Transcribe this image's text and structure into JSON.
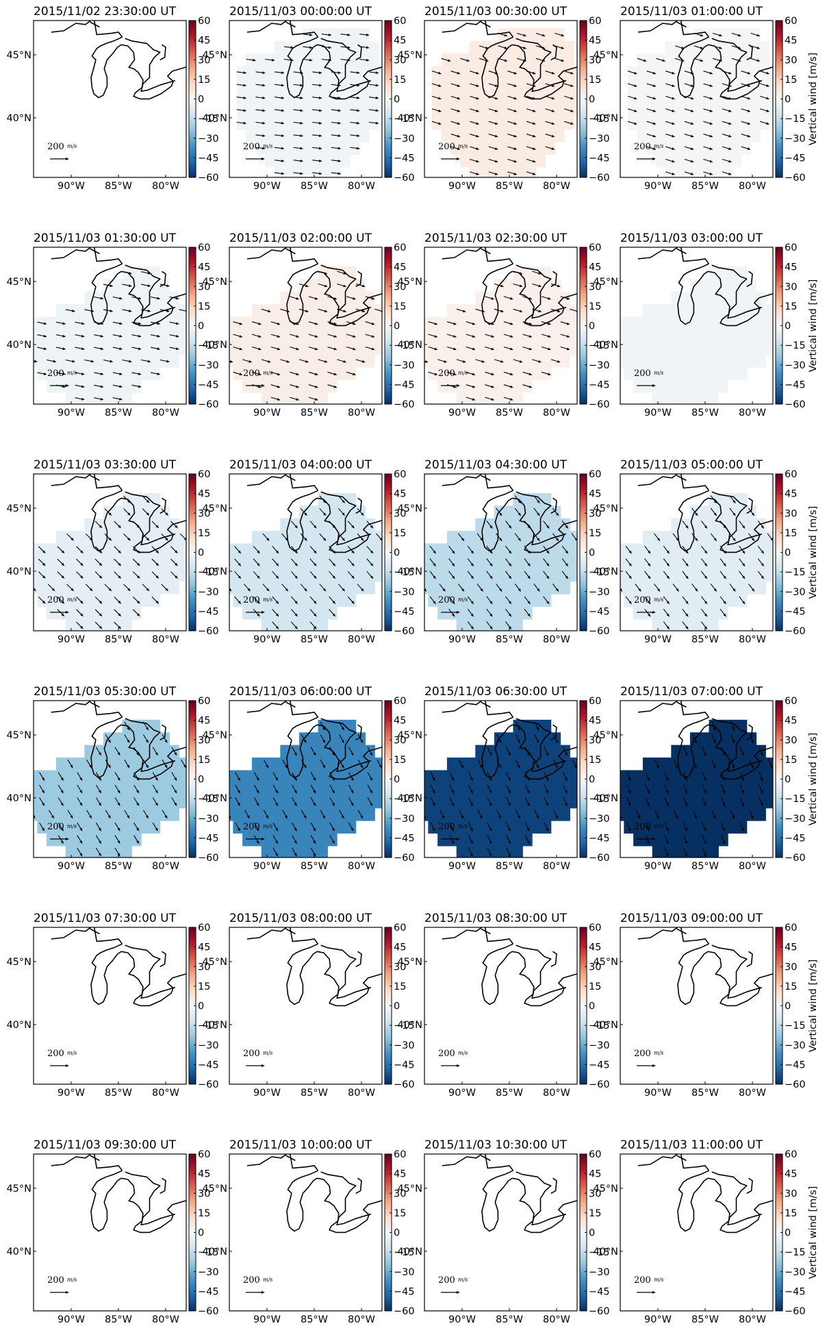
{
  "chart_data": {
    "type": "heatmap",
    "layout": "6x4 small multiples",
    "variable_label": "Vertical wind [m/s]",
    "colorbar": {
      "range": [
        -60,
        60
      ],
      "ticks": [
        "60",
        "45",
        "30",
        "15",
        "0",
        "−15",
        "−30",
        "−45",
        "−60"
      ],
      "colormap": [
        "#67001f",
        "#b2182b",
        "#d6604d",
        "#f4a582",
        "#fddbc7",
        "#f7f7f7",
        "#d1e5f0",
        "#92c5de",
        "#4393c3",
        "#2166ac",
        "#053061"
      ]
    },
    "x_ticks": [
      "90°W",
      "85°W",
      "80°W"
    ],
    "y_ticks": [
      "45°N",
      "40°N"
    ],
    "quiver_key": {
      "value": "200",
      "unit": "m/s"
    },
    "panels": [
      {
        "time": "2015/11/02 23:30:00 UT",
        "vertical_wind": null,
        "arrow": null,
        "coverage": "none"
      },
      {
        "time": "2015/11/03 00:00:00 UT",
        "vertical_wind": -2,
        "arrow": [
          1,
          -0.12
        ],
        "coverage": "small"
      },
      {
        "time": "2015/11/03 00:30:00 UT",
        "vertical_wind": 5,
        "arrow": [
          1,
          -0.3
        ],
        "coverage": "small"
      },
      {
        "time": "2015/11/03 01:00:00 UT",
        "vertical_wind": -1,
        "arrow": [
          1,
          -0.3
        ],
        "coverage": "small"
      },
      {
        "time": "2015/11/03 01:30:00 UT",
        "vertical_wind": -3,
        "arrow": [
          1,
          -0.2
        ],
        "coverage": "wide"
      },
      {
        "time": "2015/11/03 02:00:00 UT",
        "vertical_wind": 4,
        "arrow": [
          1,
          -0.3
        ],
        "coverage": "wide"
      },
      {
        "time": "2015/11/03 02:30:00 UT",
        "vertical_wind": 3,
        "arrow": [
          1,
          -0.3
        ],
        "coverage": "wide"
      },
      {
        "time": "2015/11/03 03:00:00 UT",
        "vertical_wind": -2,
        "arrow": null,
        "coverage": "wide"
      },
      {
        "time": "2015/11/03 03:30:00 UT",
        "vertical_wind": -6,
        "arrow": [
          0.75,
          -0.75
        ],
        "coverage": "wide"
      },
      {
        "time": "2015/11/03 04:00:00 UT",
        "vertical_wind": -11,
        "arrow": [
          0.7,
          -0.8
        ],
        "coverage": "wide"
      },
      {
        "time": "2015/11/03 04:30:00 UT",
        "vertical_wind": -16,
        "arrow": [
          0.65,
          -0.85
        ],
        "coverage": "wide"
      },
      {
        "time": "2015/11/03 05:00:00 UT",
        "vertical_wind": -7,
        "arrow": [
          0.65,
          -0.85
        ],
        "coverage": "wide"
      },
      {
        "time": "2015/11/03 05:30:00 UT",
        "vertical_wind": -22,
        "arrow": [
          0.55,
          -0.9
        ],
        "coverage": "wide"
      },
      {
        "time": "2015/11/03 06:00:00 UT",
        "vertical_wind": -40,
        "arrow": [
          0.5,
          -0.9
        ],
        "coverage": "wide"
      },
      {
        "time": "2015/11/03 06:30:00 UT",
        "vertical_wind": -56,
        "arrow": [
          0.45,
          -0.95
        ],
        "coverage": "wide"
      },
      {
        "time": "2015/11/03 07:00:00 UT",
        "vertical_wind": -60,
        "arrow": [
          0.4,
          -0.95
        ],
        "coverage": "wide"
      },
      {
        "time": "2015/11/03 07:30:00 UT",
        "vertical_wind": null,
        "arrow": null,
        "coverage": "none"
      },
      {
        "time": "2015/11/03 08:00:00 UT",
        "vertical_wind": null,
        "arrow": null,
        "coverage": "none"
      },
      {
        "time": "2015/11/03 08:30:00 UT",
        "vertical_wind": null,
        "arrow": null,
        "coverage": "none"
      },
      {
        "time": "2015/11/03 09:00:00 UT",
        "vertical_wind": null,
        "arrow": null,
        "coverage": "none"
      },
      {
        "time": "2015/11/03 09:30:00 UT",
        "vertical_wind": null,
        "arrow": null,
        "coverage": "none"
      },
      {
        "time": "2015/11/03 10:00:00 UT",
        "vertical_wind": null,
        "arrow": null,
        "coverage": "none"
      },
      {
        "time": "2015/11/03 10:30:00 UT",
        "vertical_wind": null,
        "arrow": null,
        "coverage": "none"
      },
      {
        "time": "2015/11/03 11:00:00 UT",
        "vertical_wind": null,
        "arrow": null,
        "coverage": "none"
      }
    ]
  }
}
